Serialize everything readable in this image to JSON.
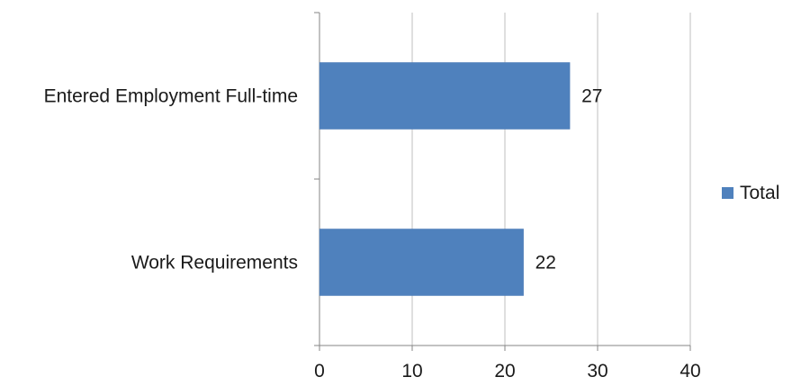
{
  "chart_data": {
    "type": "bar",
    "orientation": "horizontal",
    "categories": [
      "Entered Employment Full-time",
      "Work Requirements"
    ],
    "series": [
      {
        "name": "Total",
        "values": [
          27,
          22
        ],
        "color": "#4f81bd"
      }
    ],
    "xlim": [
      0,
      40
    ],
    "xticks": [
      0,
      10,
      20,
      30,
      40
    ],
    "grid": "vertical",
    "legend": "right",
    "data_labels": true
  }
}
